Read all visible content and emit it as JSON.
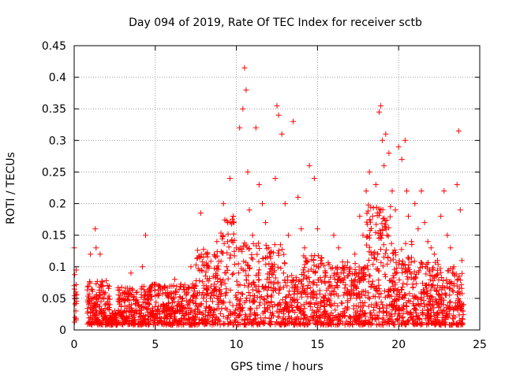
{
  "chart_data": {
    "type": "scatter",
    "title": "Day 094 of 2019, Rate Of TEC Index for receiver sctb",
    "xlabel": "GPS time / hours",
    "ylabel": "ROTI / TECUs",
    "xlim": [
      0,
      25
    ],
    "ylim": [
      0,
      0.45
    ],
    "xticks": [
      0,
      5,
      10,
      15,
      20,
      25
    ],
    "yticks": [
      0,
      0.05,
      0.1,
      0.15,
      0.2,
      0.25,
      0.3,
      0.35,
      0.4,
      0.45
    ],
    "xtick_labels": [
      "0",
      "5",
      "10",
      "15",
      "20",
      "25"
    ],
    "ytick_labels": [
      "0",
      "0.05",
      "0.1",
      "0.15",
      "0.2",
      "0.25",
      "0.3",
      "0.35",
      "0.4",
      "0.45"
    ],
    "grid": true,
    "marker": "+",
    "marker_color": "#ff0000",
    "series": [
      {
        "name": "ROTI",
        "x": [
          0.0,
          0.0,
          0.05,
          0.05,
          0.1,
          0.1,
          0.9,
          1.0,
          1.0,
          1.2,
          1.3,
          1.35,
          1.4,
          1.5,
          1.6,
          1.7,
          1.8,
          2.0,
          2.2,
          2.5,
          2.8,
          3.0,
          3.3,
          3.5,
          3.8,
          4.0,
          4.2,
          4.4,
          4.5,
          4.6,
          4.8,
          5.0,
          5.2,
          5.5,
          5.8,
          6.0,
          6.2,
          6.5,
          6.8,
          7.0,
          7.2,
          7.5,
          7.8,
          8.0,
          8.2,
          8.5,
          8.8,
          9.0,
          9.2,
          9.4,
          9.6,
          9.8,
          10.0,
          10.2,
          10.4,
          10.5,
          10.6,
          10.7,
          10.8,
          11.0,
          11.2,
          11.4,
          11.6,
          11.8,
          12.0,
          12.2,
          12.4,
          12.5,
          12.6,
          12.8,
          13.0,
          13.2,
          13.5,
          13.8,
          14.0,
          14.2,
          14.5,
          14.8,
          15.0,
          15.2,
          15.5,
          15.8,
          16.0,
          16.3,
          16.6,
          17.0,
          17.3,
          17.6,
          17.8,
          18.0,
          18.2,
          18.4,
          18.6,
          18.8,
          18.9,
          19.0,
          19.1,
          19.2,
          19.4,
          19.6,
          19.8,
          20.0,
          20.2,
          20.4,
          20.5,
          20.6,
          20.8,
          21.0,
          21.2,
          21.4,
          21.6,
          21.8,
          22.0,
          22.2,
          22.4,
          22.6,
          22.8,
          23.0,
          23.2,
          23.4,
          23.6,
          23.7,
          23.8,
          23.9
        ],
        "y": [
          0.13,
          0.07,
          0.05,
          0.02,
          0.03,
          0.06,
          0.04,
          0.12,
          0.02,
          0.03,
          0.16,
          0.13,
          0.03,
          0.05,
          0.12,
          0.07,
          0.06,
          0.02,
          0.04,
          0.03,
          0.05,
          0.02,
          0.06,
          0.09,
          0.04,
          0.03,
          0.1,
          0.15,
          0.05,
          0.06,
          0.03,
          0.02,
          0.07,
          0.04,
          0.03,
          0.05,
          0.08,
          0.03,
          0.06,
          0.04,
          0.1,
          0.05,
          0.185,
          0.07,
          0.12,
          0.06,
          0.14,
          0.08,
          0.2,
          0.1,
          0.24,
          0.18,
          0.13,
          0.32,
          0.35,
          0.415,
          0.38,
          0.25,
          0.19,
          0.15,
          0.32,
          0.23,
          0.2,
          0.17,
          0.13,
          0.1,
          0.24,
          0.355,
          0.34,
          0.31,
          0.2,
          0.15,
          0.33,
          0.21,
          0.16,
          0.13,
          0.26,
          0.24,
          0.16,
          0.11,
          0.09,
          0.07,
          0.15,
          0.13,
          0.09,
          0.06,
          0.12,
          0.18,
          0.15,
          0.22,
          0.25,
          0.18,
          0.23,
          0.345,
          0.355,
          0.3,
          0.26,
          0.31,
          0.28,
          0.22,
          0.19,
          0.29,
          0.27,
          0.3,
          0.22,
          0.18,
          0.14,
          0.2,
          0.16,
          0.22,
          0.17,
          0.14,
          0.13,
          0.12,
          0.11,
          0.18,
          0.22,
          0.15,
          0.13,
          0.1,
          0.23,
          0.315,
          0.19,
          0.11
        ]
      }
    ],
    "dense_points": 2600,
    "dense_seed": 20190094
  }
}
